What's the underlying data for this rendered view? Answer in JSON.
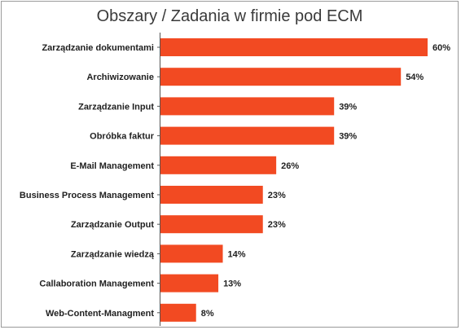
{
  "chart_data": {
    "type": "bar",
    "orientation": "horizontal",
    "title": "Obszary / Zadania w firmie pod ECM",
    "categories": [
      "Zarządzanie dokumentami",
      "Archiwizowanie",
      "Zarządzanie Input",
      "Obróbka faktur",
      "E-Mail Management",
      "Business Process Management",
      "Zarządzanie Output",
      "Zarządzanie wiedzą",
      "Callaboration Management",
      "Web-Content-Managment"
    ],
    "values": [
      60,
      54,
      39,
      39,
      26,
      23,
      23,
      14,
      13,
      8
    ],
    "value_labels": [
      "60%",
      "54%",
      "39%",
      "39%",
      "26%",
      "23%",
      "23%",
      "14%",
      "13%",
      "8%"
    ],
    "xlim": [
      0,
      60
    ],
    "grid": false,
    "bar_color": "#f24a22",
    "axis_color": "#555555"
  }
}
